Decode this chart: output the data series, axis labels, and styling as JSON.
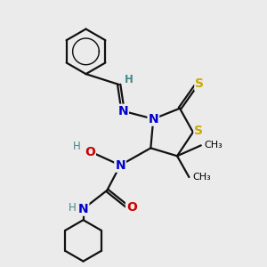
{
  "bg_color": "#ebebeb",
  "atom_colors": {
    "C": "#000000",
    "N": "#0000cc",
    "O": "#cc0000",
    "S": "#ccaa00",
    "H": "#448888"
  },
  "bond_color": "#111111",
  "bond_width": 1.6,
  "font_size_atom": 10,
  "font_size_small": 8.5
}
